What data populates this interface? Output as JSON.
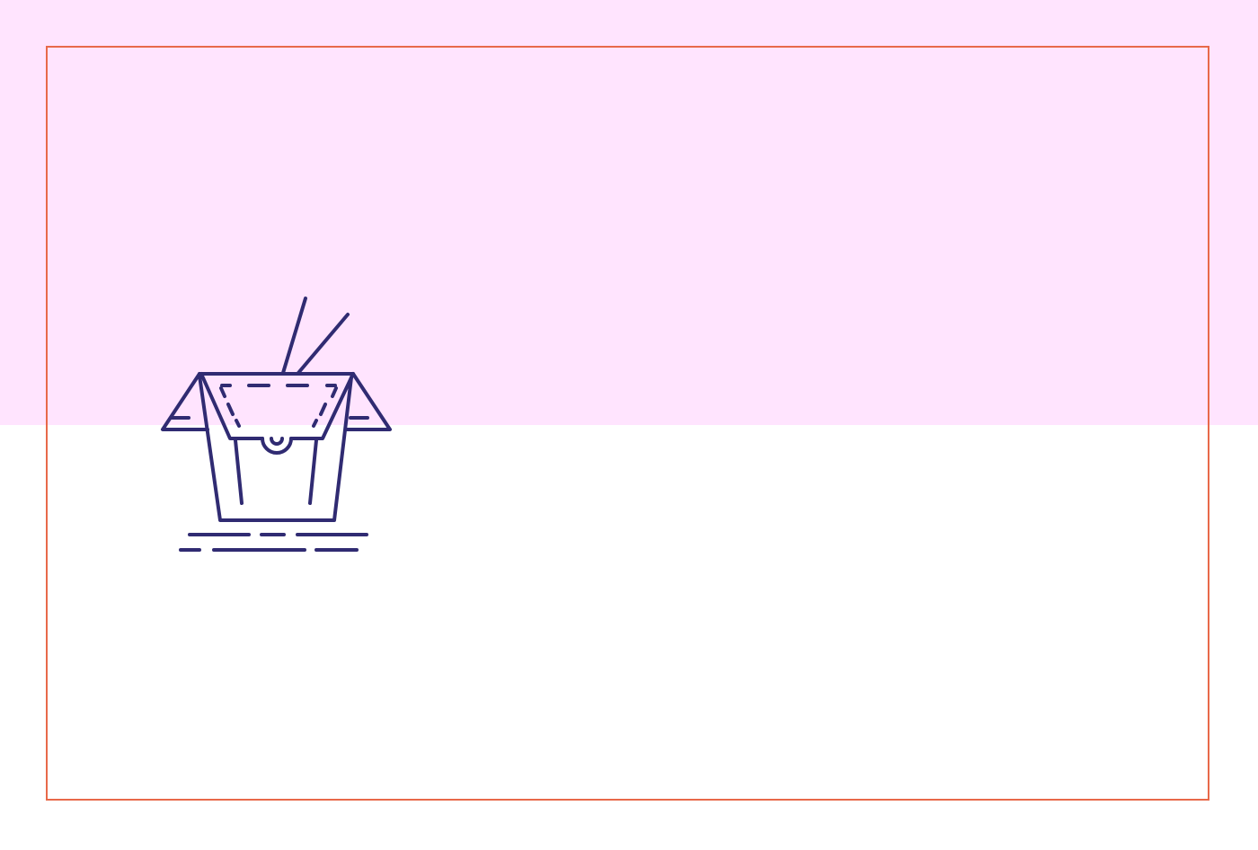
{
  "colors": {
    "top_background": "#ffe4fe",
    "bottom_background": "#ffffff",
    "frame_border": "#e8694a",
    "icon_stroke": "#302b72"
  },
  "icon": {
    "name": "takeout-box-with-chopsticks-icon"
  }
}
